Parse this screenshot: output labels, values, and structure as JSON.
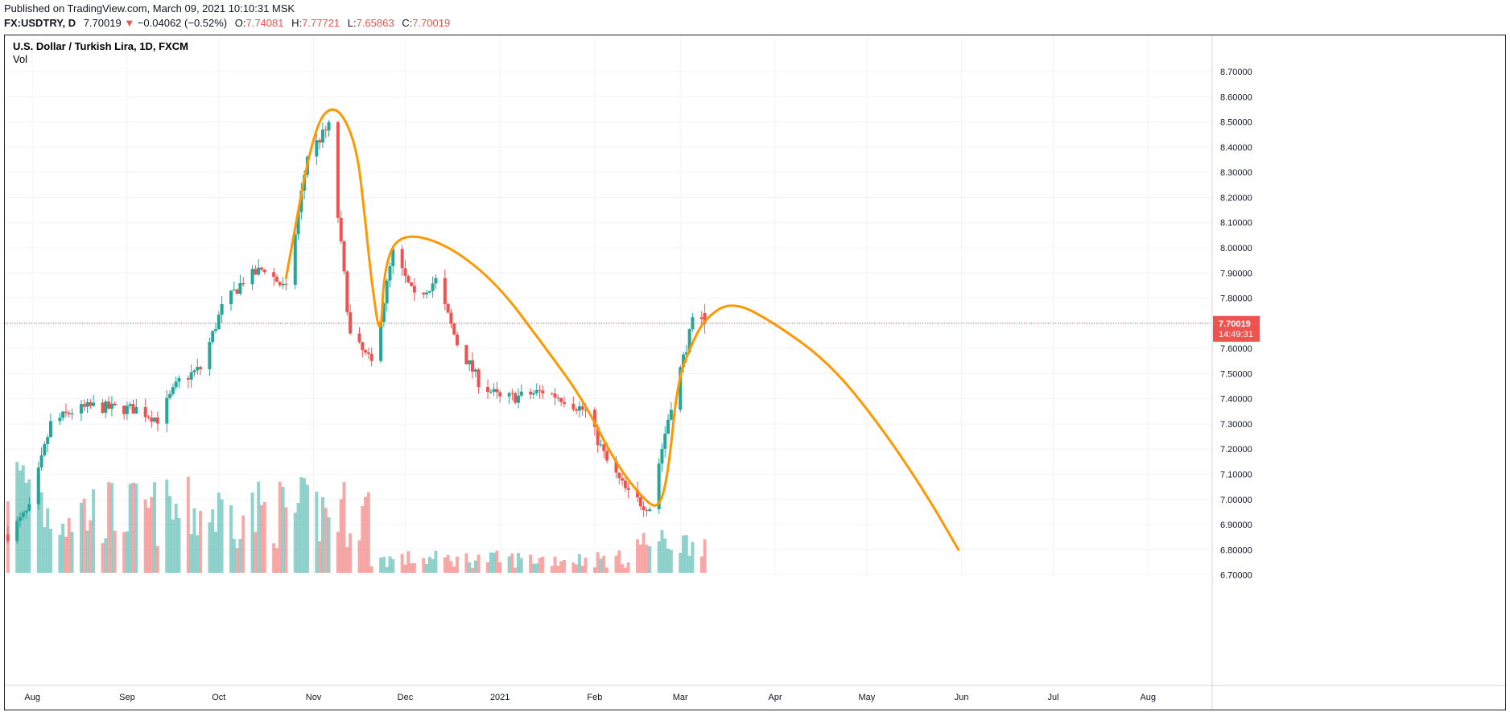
{
  "header": {
    "published": "Published on TradingView.com, March 09, 2021 10:10:31 MSK",
    "symbol": "FX:USDTRY, D",
    "last": "7.70019",
    "change_arrow": "▼",
    "change": "−0.04062 (−0.52%)",
    "o_label": "O:",
    "o_val": "7.74081",
    "h_label": "H:",
    "h_val": "7.77721",
    "l_label": "L:",
    "l_val": "7.65863",
    "c_label": "C:",
    "c_val": "7.70019"
  },
  "chart_data": {
    "type": "candlestick",
    "title": "U.S. Dollar / Turkish Lira, 1D, FXCM",
    "volume_label": "Vol",
    "last_price": 7.70019,
    "countdown": "14:49:31",
    "ylim": [
      6.67,
      8.78
    ],
    "y_ticks": [
      "8.70000",
      "8.60000",
      "8.50000",
      "8.40000",
      "8.30000",
      "8.20000",
      "8.10000",
      "8.00000",
      "7.90000",
      "7.80000",
      "7.70000",
      "7.60000",
      "7.50000",
      "7.40000",
      "7.30000",
      "7.20000",
      "7.10000",
      "7.00000",
      "6.90000",
      "6.80000",
      "6.70000"
    ],
    "x_ticks": [
      {
        "label": "Aug",
        "date": "2020-08-01"
      },
      {
        "label": "Sep",
        "date": "2020-09-01"
      },
      {
        "label": "Oct",
        "date": "2020-10-01"
      },
      {
        "label": "Nov",
        "date": "2020-11-01"
      },
      {
        "label": "Dec",
        "date": "2020-12-01"
      },
      {
        "label": "2021",
        "date": "2021-01-01"
      },
      {
        "label": "Feb",
        "date": "2021-02-01"
      },
      {
        "label": "Mar",
        "date": "2021-03-01"
      },
      {
        "label": "Apr",
        "date": "2021-04-01"
      },
      {
        "label": "May",
        "date": "2021-05-01"
      },
      {
        "label": "Jun",
        "date": "2021-06-01"
      },
      {
        "label": "Jul",
        "date": "2021-07-01"
      },
      {
        "label": "Aug",
        "date": "2021-08-01"
      }
    ],
    "x_range": [
      "2020-07-23",
      "2021-08-22"
    ],
    "start_date": "2020-07-24",
    "close_series": [
      {
        "date": "2020-07-24",
        "close": 6.86
      },
      {
        "date": "2020-07-31",
        "close": 6.96
      },
      {
        "date": "2020-08-07",
        "close": 7.3
      },
      {
        "date": "2020-08-14",
        "close": 7.35
      },
      {
        "date": "2020-08-21",
        "close": 7.37
      },
      {
        "date": "2020-08-28",
        "close": 7.36
      },
      {
        "date": "2020-09-04",
        "close": 7.36
      },
      {
        "date": "2020-09-11",
        "close": 7.32
      },
      {
        "date": "2020-09-18",
        "close": 7.47
      },
      {
        "date": "2020-09-25",
        "close": 7.52
      },
      {
        "date": "2020-10-02",
        "close": 7.76
      },
      {
        "date": "2020-10-09",
        "close": 7.87
      },
      {
        "date": "2020-10-16",
        "close": 7.92
      },
      {
        "date": "2020-10-23",
        "close": 7.83
      },
      {
        "date": "2020-10-30",
        "close": 8.37
      },
      {
        "date": "2020-11-06",
        "close": 8.48
      },
      {
        "date": "2020-11-13",
        "close": 7.65
      },
      {
        "date": "2020-11-20",
        "close": 7.54
      },
      {
        "date": "2020-11-27",
        "close": 7.98
      },
      {
        "date": "2020-12-04",
        "close": 7.8
      },
      {
        "date": "2020-12-11",
        "close": 7.87
      },
      {
        "date": "2020-12-18",
        "close": 7.62
      },
      {
        "date": "2020-12-25",
        "close": 7.47
      },
      {
        "date": "2021-01-01",
        "close": 7.4
      },
      {
        "date": "2021-01-08",
        "close": 7.41
      },
      {
        "date": "2021-01-15",
        "close": 7.43
      },
      {
        "date": "2021-01-22",
        "close": 7.4
      },
      {
        "date": "2021-01-29",
        "close": 7.35
      },
      {
        "date": "2021-02-05",
        "close": 7.15
      },
      {
        "date": "2021-02-12",
        "close": 7.02
      },
      {
        "date": "2021-02-17",
        "close": 6.98
      },
      {
        "date": "2021-02-19",
        "close": 6.97
      },
      {
        "date": "2021-02-26",
        "close": 7.38
      },
      {
        "date": "2021-03-05",
        "close": 7.7
      },
      {
        "date": "2021-03-09",
        "close": 7.7
      }
    ],
    "annotation_path": [
      {
        "date": "2020-10-23",
        "value": 7.88
      },
      {
        "date": "2020-11-01",
        "value": 8.48
      },
      {
        "date": "2020-11-08",
        "value": 8.58
      },
      {
        "date": "2020-11-15",
        "value": 8.42
      },
      {
        "date": "2020-11-18",
        "value": 8.1
      },
      {
        "date": "2020-11-20",
        "value": 7.86
      },
      {
        "date": "2020-11-23",
        "value": 7.62
      },
      {
        "date": "2020-11-24",
        "value": 7.92
      },
      {
        "date": "2020-11-29",
        "value": 8.06
      },
      {
        "date": "2020-12-14",
        "value": 8.02
      },
      {
        "date": "2020-12-31",
        "value": 7.86
      },
      {
        "date": "2021-01-16",
        "value": 7.6
      },
      {
        "date": "2021-01-28",
        "value": 7.4
      },
      {
        "date": "2021-02-08",
        "value": 7.14
      },
      {
        "date": "2021-02-17",
        "value": 7.0
      },
      {
        "date": "2021-02-22",
        "value": 6.96
      },
      {
        "date": "2021-02-25",
        "value": 7.1
      },
      {
        "date": "2021-02-28",
        "value": 7.46
      },
      {
        "date": "2021-03-04",
        "value": 7.6
      },
      {
        "date": "2021-03-09",
        "value": 7.72
      },
      {
        "date": "2021-03-18",
        "value": 7.79
      },
      {
        "date": "2021-04-01",
        "value": 7.7
      },
      {
        "date": "2021-04-19",
        "value": 7.54
      },
      {
        "date": "2021-05-05",
        "value": 7.3
      },
      {
        "date": "2021-05-20",
        "value": 7.03
      },
      {
        "date": "2021-05-31",
        "value": 6.8
      }
    ],
    "colors": {
      "up": "#26a69a",
      "down": "#ef5350",
      "annotation": "#ff9800",
      "last_line": "#ef5350",
      "grid": "#f0f3fa"
    },
    "grid": true
  }
}
